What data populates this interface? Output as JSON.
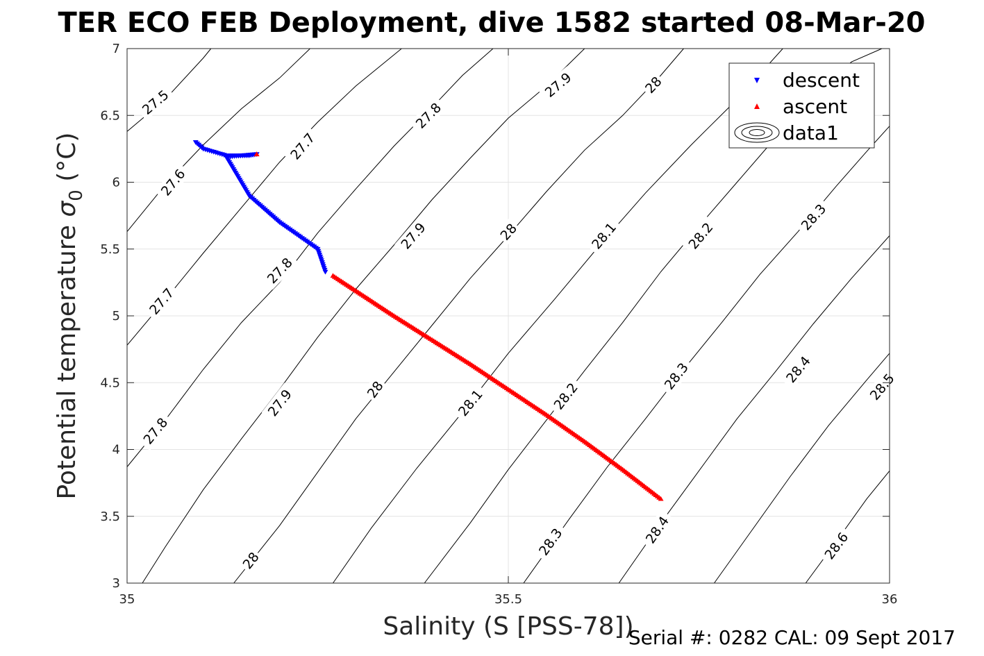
{
  "chart_data": {
    "type": "scatter",
    "title": "TER ECO FEB Deployment, dive 1582 started 08-Mar-20",
    "xlabel": "Salinity (S [PSS-78])",
    "ylabel_text": "Potential temperature ",
    "ylabel_sigma": "σ",
    "ylabel_sub": "0",
    "ylabel_unit": " (°C)",
    "xlim": [
      35,
      36
    ],
    "ylim": [
      3,
      7
    ],
    "xticks": [
      "35",
      "35.5",
      "36"
    ],
    "yticks": [
      "3",
      "3.5",
      "4",
      "4.5",
      "5",
      "5.5",
      "6",
      "6.5",
      "7"
    ],
    "grid": true,
    "legend_position": "top-right",
    "series": [
      {
        "name": "descent",
        "marker": "triangle-down",
        "color": "#0000ff",
        "polyline": [
          [
            35.09,
            6.3
          ],
          [
            35.1,
            6.25
          ],
          [
            35.13,
            6.2
          ],
          [
            35.16,
            6.2
          ],
          [
            35.17,
            6.21
          ],
          [
            35.13,
            6.19
          ],
          [
            35.16,
            5.9
          ],
          [
            35.2,
            5.7
          ],
          [
            35.25,
            5.5
          ],
          [
            35.26,
            5.33
          ]
        ]
      },
      {
        "name": "ascent",
        "marker": "triangle-up",
        "color": "#ff0000",
        "polyline": [
          [
            35.27,
            5.3
          ],
          [
            35.31,
            5.15
          ],
          [
            35.35,
            5.0
          ],
          [
            35.4,
            4.82
          ],
          [
            35.45,
            4.64
          ],
          [
            35.5,
            4.45
          ],
          [
            35.55,
            4.26
          ],
          [
            35.6,
            4.06
          ],
          [
            35.65,
            3.85
          ],
          [
            35.7,
            3.63
          ]
        ]
      }
    ],
    "pinned_points": [
      [
        35.17,
        6.21
      ]
    ],
    "contour_series_name": "data1",
    "contours": [
      {
        "label": "27.5",
        "points": [
          [
            35.0,
            6.38
          ],
          [
            35.05,
            6.62
          ],
          [
            35.1,
            6.93
          ],
          [
            35.11,
            7.0
          ]
        ]
      },
      {
        "label": "27.6",
        "points": [
          [
            35.0,
            5.63
          ],
          [
            35.05,
            5.98
          ],
          [
            35.1,
            6.28
          ],
          [
            35.15,
            6.55
          ],
          [
            35.2,
            6.78
          ],
          [
            35.24,
            7.0
          ]
        ]
      },
      {
        "label": "27.7",
        "points": [
          [
            35.0,
            4.78
          ],
          [
            35.05,
            5.12
          ],
          [
            35.1,
            5.47
          ],
          [
            35.15,
            5.81
          ],
          [
            35.2,
            6.15
          ],
          [
            35.25,
            6.45
          ],
          [
            35.3,
            6.72
          ],
          [
            35.36,
            7.0
          ]
        ]
      },
      {
        "label": "27.8",
        "points": [
          [
            35.0,
            3.87
          ],
          [
            35.05,
            4.22
          ],
          [
            35.1,
            4.6
          ],
          [
            35.15,
            4.95
          ],
          [
            35.2,
            5.25
          ],
          [
            35.25,
            5.62
          ],
          [
            35.3,
            5.95
          ],
          [
            35.35,
            6.27
          ],
          [
            35.4,
            6.56
          ],
          [
            35.44,
            6.8
          ],
          [
            35.48,
            7.0
          ]
        ]
      },
      {
        "label": "27.9",
        "points": [
          [
            35.02,
            3.0
          ],
          [
            35.05,
            3.27
          ],
          [
            35.1,
            3.7
          ],
          [
            35.15,
            4.08
          ],
          [
            35.2,
            4.45
          ],
          [
            35.25,
            4.84
          ],
          [
            35.3,
            5.2
          ],
          [
            35.35,
            5.53
          ],
          [
            35.4,
            5.87
          ],
          [
            35.45,
            6.18
          ],
          [
            35.5,
            6.48
          ],
          [
            35.55,
            6.72
          ],
          [
            35.6,
            7.0
          ]
        ]
      },
      {
        "label": "28",
        "points": [
          [
            35.14,
            3.0
          ],
          [
            35.2,
            3.43
          ],
          [
            35.25,
            3.83
          ],
          [
            35.3,
            4.23
          ],
          [
            35.35,
            4.58
          ],
          [
            35.4,
            4.93
          ],
          [
            35.45,
            5.28
          ],
          [
            35.5,
            5.6
          ],
          [
            35.55,
            5.93
          ],
          [
            35.6,
            6.24
          ],
          [
            35.65,
            6.5
          ],
          [
            35.7,
            6.8
          ],
          [
            35.73,
            7.0
          ]
        ]
      },
      {
        "label": "28.1",
        "points": [
          [
            35.27,
            3.0
          ],
          [
            35.32,
            3.41
          ],
          [
            35.38,
            3.86
          ],
          [
            35.44,
            4.28
          ],
          [
            35.5,
            4.72
          ],
          [
            35.56,
            5.12
          ],
          [
            35.62,
            5.53
          ],
          [
            35.68,
            5.92
          ],
          [
            35.74,
            6.28
          ],
          [
            35.8,
            6.62
          ],
          [
            35.86,
            7.0
          ]
        ]
      },
      {
        "label": "28.2",
        "points": [
          [
            35.39,
            3.0
          ],
          [
            35.45,
            3.45
          ],
          [
            35.5,
            3.85
          ],
          [
            35.55,
            4.22
          ],
          [
            35.6,
            4.59
          ],
          [
            35.65,
            4.95
          ],
          [
            35.7,
            5.33
          ],
          [
            35.75,
            5.67
          ],
          [
            35.8,
            6.0
          ],
          [
            35.85,
            6.33
          ],
          [
            35.9,
            6.63
          ],
          [
            35.95,
            6.9
          ],
          [
            35.99,
            7.0
          ]
        ]
      },
      {
        "label": "28.3",
        "points": [
          [
            35.52,
            3.0
          ],
          [
            35.58,
            3.48
          ],
          [
            35.63,
            3.87
          ],
          [
            35.68,
            4.23
          ],
          [
            35.73,
            4.6
          ],
          [
            35.78,
            4.95
          ],
          [
            35.83,
            5.31
          ],
          [
            35.88,
            5.63
          ],
          [
            35.93,
            5.97
          ],
          [
            35.97,
            6.23
          ],
          [
            36.0,
            6.42
          ]
        ]
      },
      {
        "label": "28.4",
        "points": [
          [
            35.645,
            3.0
          ],
          [
            35.7,
            3.45
          ],
          [
            35.75,
            3.84
          ],
          [
            35.8,
            4.23
          ],
          [
            35.85,
            4.58
          ],
          [
            35.9,
            4.94
          ],
          [
            35.95,
            5.28
          ],
          [
            36.0,
            5.6
          ]
        ]
      },
      {
        "label": "28.5",
        "points": [
          [
            35.77,
            3.0
          ],
          [
            35.82,
            3.4
          ],
          [
            35.87,
            3.8
          ],
          [
            35.92,
            4.18
          ],
          [
            35.97,
            4.52
          ],
          [
            36.0,
            4.72
          ]
        ]
      },
      {
        "label": "28.6",
        "points": [
          [
            35.89,
            3.0
          ],
          [
            35.93,
            3.31
          ],
          [
            35.97,
            3.63
          ],
          [
            36.0,
            3.84
          ]
        ]
      }
    ],
    "contour_labels": [
      {
        "text": "27.5",
        "x": 35.037,
        "y": 6.6
      },
      {
        "text": "27.6",
        "x": 35.06,
        "y": 6.0
      },
      {
        "text": "27.7",
        "x": 35.045,
        "y": 5.11
      },
      {
        "text": "27.7",
        "x": 35.23,
        "y": 6.27
      },
      {
        "text": "27.8",
        "x": 35.037,
        "y": 4.14
      },
      {
        "text": "27.8",
        "x": 35.2,
        "y": 5.34
      },
      {
        "text": "27.8",
        "x": 35.395,
        "y": 6.5
      },
      {
        "text": "27.9",
        "x": 35.2,
        "y": 4.35
      },
      {
        "text": "27.9",
        "x": 35.375,
        "y": 5.6
      },
      {
        "text": "27.9",
        "x": 35.565,
        "y": 6.73
      },
      {
        "text": "28",
        "x": 35.162,
        "y": 3.17
      },
      {
        "text": "28",
        "x": 35.325,
        "y": 4.45
      },
      {
        "text": "28",
        "x": 35.5,
        "y": 5.63
      },
      {
        "text": "28",
        "x": 35.69,
        "y": 6.73
      },
      {
        "text": "28.1",
        "x": 35.45,
        "y": 4.35
      },
      {
        "text": "28.1",
        "x": 35.625,
        "y": 5.6
      },
      {
        "text": "28.2",
        "x": 35.575,
        "y": 4.4
      },
      {
        "text": "28.2",
        "x": 35.752,
        "y": 5.6
      },
      {
        "text": "28.3",
        "x": 35.555,
        "y": 3.31
      },
      {
        "text": "28.3",
        "x": 35.72,
        "y": 4.55
      },
      {
        "text": "28.3",
        "x": 35.9,
        "y": 5.74
      },
      {
        "text": "28.4",
        "x": 35.695,
        "y": 3.4
      },
      {
        "text": "28.4",
        "x": 35.88,
        "y": 4.6
      },
      {
        "text": "28.5",
        "x": 35.99,
        "y": 4.47
      },
      {
        "text": "28.6",
        "x": 35.93,
        "y": 3.28
      }
    ]
  },
  "legend": {
    "descent": "descent",
    "ascent": "ascent",
    "data1": "data1"
  },
  "footer": "Serial #: 0282  CAL: 09 Sept 2017"
}
